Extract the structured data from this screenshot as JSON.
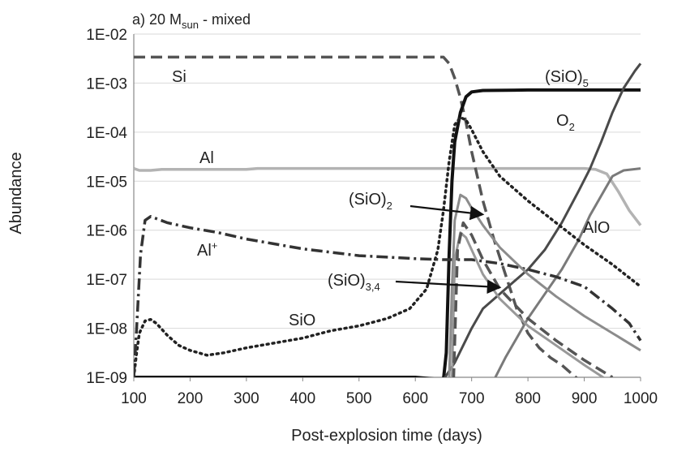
{
  "chart_data": {
    "type": "line",
    "title": {
      "main": "a) 20 M",
      "sub": "sun",
      "tail": " - mixed"
    },
    "xlabel": "Post-explosion time (days)",
    "ylabel": "Abundance",
    "xlim": [
      100,
      1000
    ],
    "ylim_exp": [
      -9,
      -2
    ],
    "x_ticks": [
      100,
      200,
      300,
      400,
      500,
      600,
      700,
      800,
      900,
      1000
    ],
    "y_ticks": [
      {
        "exp": -2,
        "label": "1E-02"
      },
      {
        "exp": -3,
        "label": "1E-03"
      },
      {
        "exp": -4,
        "label": "1E-04"
      },
      {
        "exp": -5,
        "label": "1E-05"
      },
      {
        "exp": -6,
        "label": "1E-06"
      },
      {
        "exp": -7,
        "label": "1E-07"
      },
      {
        "exp": -8,
        "label": "1E-08"
      },
      {
        "exp": -9,
        "label": "1E-09"
      }
    ],
    "series": [
      {
        "name": "Al",
        "color": "#b3b3b3",
        "width": 3.5,
        "dash": "",
        "points": [
          [
            100,
            -4.74
          ],
          [
            110,
            -4.78
          ],
          [
            130,
            -4.78
          ],
          [
            150,
            -4.76
          ],
          [
            200,
            -4.76
          ],
          [
            300,
            -4.76
          ],
          [
            320,
            -4.74
          ],
          [
            400,
            -4.74
          ],
          [
            600,
            -4.74
          ],
          [
            700,
            -4.74
          ],
          [
            800,
            -4.74
          ],
          [
            900,
            -4.74
          ],
          [
            920,
            -4.76
          ],
          [
            940,
            -4.85
          ],
          [
            960,
            -5.2
          ],
          [
            980,
            -5.6
          ],
          [
            1000,
            -5.9
          ]
        ]
      },
      {
        "name": "Si",
        "color": "#555555",
        "width": 3.5,
        "dash": "14 7",
        "points": [
          [
            100,
            -2.47
          ],
          [
            200,
            -2.47
          ],
          [
            400,
            -2.47
          ],
          [
            600,
            -2.47
          ],
          [
            650,
            -2.47
          ],
          [
            660,
            -2.6
          ],
          [
            670,
            -2.9
          ],
          [
            680,
            -3.3
          ],
          [
            690,
            -3.8
          ],
          [
            700,
            -4.4
          ],
          [
            720,
            -5.4
          ],
          [
            740,
            -6.2
          ],
          [
            760,
            -6.9
          ],
          [
            780,
            -7.6
          ],
          [
            800,
            -8.1
          ],
          [
            820,
            -8.4
          ],
          [
            840,
            -8.6
          ],
          [
            860,
            -8.75
          ],
          [
            880,
            -8.95
          ],
          [
            890,
            -9.05
          ]
        ]
      },
      {
        "name": "(SiO)5",
        "color": "#111111",
        "width": 4,
        "dash": "",
        "points": [
          [
            100,
            -9.0
          ],
          [
            200,
            -9.0
          ],
          [
            400,
            -9.0
          ],
          [
            600,
            -9.0
          ],
          [
            650,
            -9.05
          ],
          [
            655,
            -8.5
          ],
          [
            660,
            -6.5
          ],
          [
            665,
            -5.0
          ],
          [
            670,
            -4.2
          ],
          [
            680,
            -3.6
          ],
          [
            690,
            -3.28
          ],
          [
            700,
            -3.18
          ],
          [
            720,
            -3.15
          ],
          [
            800,
            -3.14
          ],
          [
            900,
            -3.14
          ],
          [
            1000,
            -3.14
          ]
        ]
      },
      {
        "name": "O2",
        "color": "#4a4a4a",
        "width": 3,
        "dash": "",
        "points": [
          [
            650,
            -9.05
          ],
          [
            670,
            -8.7
          ],
          [
            700,
            -8.0
          ],
          [
            720,
            -7.6
          ],
          [
            750,
            -7.3
          ],
          [
            780,
            -7.0
          ],
          [
            800,
            -6.8
          ],
          [
            830,
            -6.4
          ],
          [
            860,
            -5.85
          ],
          [
            890,
            -5.2
          ],
          [
            910,
            -4.75
          ],
          [
            930,
            -4.2
          ],
          [
            950,
            -3.6
          ],
          [
            970,
            -3.1
          ],
          [
            990,
            -2.75
          ],
          [
            1000,
            -2.6
          ]
        ]
      },
      {
        "name": "AlO",
        "color": "#7a7a7a",
        "width": 3,
        "dash": "",
        "points": [
          [
            740,
            -9.05
          ],
          [
            760,
            -8.6
          ],
          [
            780,
            -8.2
          ],
          [
            800,
            -7.8
          ],
          [
            830,
            -7.3
          ],
          [
            860,
            -6.8
          ],
          [
            890,
            -6.2
          ],
          [
            910,
            -5.7
          ],
          [
            930,
            -5.3
          ],
          [
            950,
            -4.9
          ],
          [
            970,
            -4.78
          ],
          [
            1000,
            -4.74
          ]
        ]
      },
      {
        "name": "SiO",
        "color": "#222222",
        "width": 3.5,
        "dash": "2 5",
        "points": [
          [
            100,
            -9.0
          ],
          [
            105,
            -8.5
          ],
          [
            110,
            -8.1
          ],
          [
            120,
            -7.85
          ],
          [
            130,
            -7.82
          ],
          [
            140,
            -7.9
          ],
          [
            160,
            -8.15
          ],
          [
            180,
            -8.35
          ],
          [
            200,
            -8.45
          ],
          [
            230,
            -8.55
          ],
          [
            260,
            -8.5
          ],
          [
            300,
            -8.4
          ],
          [
            350,
            -8.3
          ],
          [
            400,
            -8.2
          ],
          [
            450,
            -8.05
          ],
          [
            500,
            -7.95
          ],
          [
            550,
            -7.8
          ],
          [
            590,
            -7.6
          ],
          [
            620,
            -7.2
          ],
          [
            640,
            -6.4
          ],
          [
            650,
            -5.6
          ],
          [
            660,
            -4.6
          ],
          [
            670,
            -3.85
          ],
          [
            680,
            -3.7
          ],
          [
            690,
            -3.75
          ],
          [
            700,
            -3.95
          ],
          [
            720,
            -4.4
          ],
          [
            750,
            -4.9
          ],
          [
            800,
            -5.4
          ],
          [
            850,
            -5.85
          ],
          [
            900,
            -6.3
          ],
          [
            950,
            -6.7
          ],
          [
            1000,
            -7.15
          ]
        ]
      },
      {
        "name": "Al+",
        "color": "#333333",
        "width": 3.5,
        "dash": "14 5 3 5",
        "points": [
          [
            100,
            -9.0
          ],
          [
            105,
            -8.0
          ],
          [
            112,
            -6.5
          ],
          [
            120,
            -5.8
          ],
          [
            130,
            -5.72
          ],
          [
            160,
            -5.85
          ],
          [
            200,
            -5.95
          ],
          [
            250,
            -6.05
          ],
          [
            300,
            -6.18
          ],
          [
            350,
            -6.28
          ],
          [
            400,
            -6.38
          ],
          [
            450,
            -6.45
          ],
          [
            500,
            -6.52
          ],
          [
            550,
            -6.55
          ],
          [
            600,
            -6.58
          ],
          [
            650,
            -6.6
          ],
          [
            700,
            -6.6
          ],
          [
            750,
            -6.68
          ],
          [
            800,
            -6.8
          ],
          [
            850,
            -6.95
          ],
          [
            900,
            -7.15
          ],
          [
            950,
            -7.6
          ],
          [
            980,
            -7.9
          ],
          [
            1000,
            -8.25
          ]
        ]
      },
      {
        "name": "(SiO)2",
        "color": "#8c8c8c",
        "width": 3,
        "dash": "",
        "points": [
          [
            660,
            -9.05
          ],
          [
            665,
            -7.2
          ],
          [
            670,
            -5.8
          ],
          [
            680,
            -5.28
          ],
          [
            690,
            -5.35
          ],
          [
            700,
            -5.55
          ],
          [
            720,
            -5.9
          ],
          [
            750,
            -6.35
          ],
          [
            800,
            -6.9
          ],
          [
            850,
            -7.35
          ],
          [
            900,
            -7.75
          ],
          [
            950,
            -8.1
          ],
          [
            1000,
            -8.45
          ]
        ]
      },
      {
        "name": "(SiO)3,4",
        "color": "#999999",
        "width": 3,
        "dash": "",
        "points": [
          [
            665,
            -9.05
          ],
          [
            670,
            -6.6
          ],
          [
            680,
            -6.05
          ],
          [
            690,
            -6.15
          ],
          [
            700,
            -6.4
          ],
          [
            720,
            -6.9
          ],
          [
            750,
            -7.4
          ],
          [
            800,
            -7.95
          ],
          [
            850,
            -8.35
          ],
          [
            900,
            -8.75
          ],
          [
            940,
            -9.05
          ]
        ]
      },
      {
        "name": "(SiO)3,4 dashed",
        "color": "#555555",
        "width": 3.5,
        "dash": "14 7",
        "points": [
          [
            668,
            -9.05
          ],
          [
            675,
            -6.4
          ],
          [
            685,
            -5.85
          ],
          [
            700,
            -6.1
          ],
          [
            720,
            -6.6
          ],
          [
            750,
            -7.2
          ],
          [
            800,
            -7.8
          ],
          [
            850,
            -8.25
          ],
          [
            900,
            -8.65
          ],
          [
            950,
            -9.0
          ]
        ]
      }
    ],
    "labels": [
      {
        "text": "Si",
        "sub": ""
      },
      {
        "text": "Al",
        "sub": ""
      },
      {
        "text": "Al",
        "sup": "+"
      },
      {
        "text": "SiO",
        "sub": ""
      },
      {
        "text": "(SiO)",
        "sub": "5"
      },
      {
        "text": "O",
        "sub": "2"
      },
      {
        "text": "AlO",
        "sub": ""
      },
      {
        "text": "(SiO)",
        "sub": "2"
      },
      {
        "text": "(SiO)",
        "sub": "3,4"
      }
    ]
  }
}
